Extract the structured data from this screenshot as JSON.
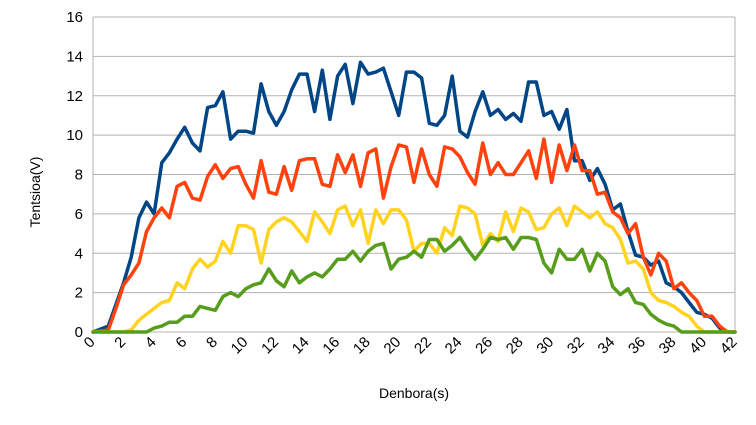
{
  "chart_data": {
    "type": "line",
    "xlabel": "Denbora(s)",
    "ylabel": "Tentsioa(V)",
    "xlim": [
      0,
      42
    ],
    "ylim": [
      0,
      16
    ],
    "xticks": [
      0,
      2,
      4,
      6,
      8,
      10,
      12,
      14,
      16,
      18,
      20,
      22,
      24,
      26,
      28,
      30,
      32,
      34,
      36,
      38,
      40,
      42
    ],
    "yticks": [
      0,
      2,
      4,
      6,
      8,
      10,
      12,
      14,
      16
    ],
    "grid": true,
    "legend": "none",
    "series": [
      {
        "color": "#004586",
        "points": [
          [
            0,
            0
          ],
          [
            1,
            0.3
          ],
          [
            2,
            2.5
          ],
          [
            2.5,
            3.8
          ],
          [
            3,
            5.8
          ],
          [
            3.5,
            6.6
          ],
          [
            4,
            6.0
          ],
          [
            4.5,
            8.6
          ],
          [
            5,
            9.1
          ],
          [
            5.5,
            9.8
          ],
          [
            6,
            10.4
          ],
          [
            6.5,
            9.6
          ],
          [
            7,
            9.2
          ],
          [
            7.5,
            11.4
          ],
          [
            8,
            11.5
          ],
          [
            8.5,
            12.2
          ],
          [
            9,
            9.8
          ],
          [
            9.5,
            10.2
          ],
          [
            10,
            10.2
          ],
          [
            10.5,
            10.1
          ],
          [
            11,
            12.6
          ],
          [
            11.5,
            11.2
          ],
          [
            12,
            10.5
          ],
          [
            12.5,
            11.2
          ],
          [
            13,
            12.3
          ],
          [
            13.5,
            13.1
          ],
          [
            14,
            13.1
          ],
          [
            14.5,
            11.2
          ],
          [
            15,
            13.3
          ],
          [
            15.5,
            10.8
          ],
          [
            16,
            13.0
          ],
          [
            16.5,
            13.6
          ],
          [
            17,
            11.6
          ],
          [
            17.5,
            13.7
          ],
          [
            18,
            13.1
          ],
          [
            18.5,
            13.2
          ],
          [
            19,
            13.4
          ],
          [
            19.5,
            12.2
          ],
          [
            20,
            11.0
          ],
          [
            20.5,
            13.2
          ],
          [
            21,
            13.2
          ],
          [
            21.5,
            12.9
          ],
          [
            22,
            10.6
          ],
          [
            22.5,
            10.5
          ],
          [
            23,
            11.0
          ],
          [
            23.5,
            13.0
          ],
          [
            24,
            10.2
          ],
          [
            24.5,
            9.9
          ],
          [
            25,
            11.2
          ],
          [
            25.5,
            12.2
          ],
          [
            26,
            11.0
          ],
          [
            26.5,
            11.3
          ],
          [
            27,
            10.8
          ],
          [
            27.5,
            11.1
          ],
          [
            28,
            10.7
          ],
          [
            28.5,
            12.7
          ],
          [
            29,
            12.7
          ],
          [
            29.5,
            11.0
          ],
          [
            30,
            11.2
          ],
          [
            30.5,
            10.3
          ],
          [
            31,
            11.3
          ],
          [
            31.5,
            8.7
          ],
          [
            32,
            8.7
          ],
          [
            32.5,
            7.7
          ],
          [
            33,
            8.3
          ],
          [
            33.5,
            7.5
          ],
          [
            34,
            6.2
          ],
          [
            34.5,
            6.5
          ],
          [
            35,
            5.1
          ],
          [
            35.5,
            3.9
          ],
          [
            36,
            3.8
          ],
          [
            36.5,
            3.4
          ],
          [
            37,
            3.6
          ],
          [
            37.5,
            2.5
          ],
          [
            38,
            2.3
          ],
          [
            38.5,
            2.0
          ],
          [
            39,
            1.5
          ],
          [
            39.5,
            1.0
          ],
          [
            40,
            0.9
          ],
          [
            40.5,
            0.7
          ],
          [
            41,
            0.2
          ],
          [
            41.5,
            0
          ],
          [
            42,
            0
          ]
        ]
      },
      {
        "color": "#ff420e",
        "points": [
          [
            0,
            0
          ],
          [
            1,
            0.1
          ],
          [
            1.5,
            1.2
          ],
          [
            2,
            2.4
          ],
          [
            2.5,
            2.9
          ],
          [
            3,
            3.5
          ],
          [
            3.5,
            5.1
          ],
          [
            4,
            5.8
          ],
          [
            4.5,
            6.3
          ],
          [
            5,
            5.8
          ],
          [
            5.5,
            7.4
          ],
          [
            6,
            7.6
          ],
          [
            6.5,
            6.8
          ],
          [
            7,
            6.7
          ],
          [
            7.5,
            7.9
          ],
          [
            8,
            8.5
          ],
          [
            8.5,
            7.8
          ],
          [
            9,
            8.3
          ],
          [
            9.5,
            8.4
          ],
          [
            10,
            7.5
          ],
          [
            10.5,
            6.8
          ],
          [
            11,
            8.7
          ],
          [
            11.5,
            7.1
          ],
          [
            12,
            7.0
          ],
          [
            12.5,
            8.4
          ],
          [
            13,
            7.2
          ],
          [
            13.5,
            8.7
          ],
          [
            14,
            8.8
          ],
          [
            14.5,
            8.8
          ],
          [
            15,
            7.5
          ],
          [
            15.5,
            7.4
          ],
          [
            16,
            9.0
          ],
          [
            16.5,
            8.1
          ],
          [
            17,
            9.0
          ],
          [
            17.5,
            7.4
          ],
          [
            18,
            9.1
          ],
          [
            18.5,
            9.3
          ],
          [
            19,
            6.8
          ],
          [
            19.5,
            8.4
          ],
          [
            20,
            9.5
          ],
          [
            20.5,
            9.4
          ],
          [
            21,
            7.6
          ],
          [
            21.5,
            9.3
          ],
          [
            22,
            8.0
          ],
          [
            22.5,
            7.4
          ],
          [
            23,
            9.4
          ],
          [
            23.5,
            9.3
          ],
          [
            24,
            8.9
          ],
          [
            24.5,
            8.1
          ],
          [
            25,
            7.5
          ],
          [
            25.5,
            9.6
          ],
          [
            26,
            8.0
          ],
          [
            26.5,
            8.6
          ],
          [
            27,
            8.0
          ],
          [
            27.5,
            8.0
          ],
          [
            28,
            8.6
          ],
          [
            28.5,
            9.2
          ],
          [
            29,
            7.8
          ],
          [
            29.5,
            9.8
          ],
          [
            30,
            7.6
          ],
          [
            30.5,
            9.5
          ],
          [
            31,
            8.2
          ],
          [
            31.5,
            9.5
          ],
          [
            32,
            8.2
          ],
          [
            32.5,
            8.2
          ],
          [
            33,
            7.0
          ],
          [
            33.5,
            7.1
          ],
          [
            34,
            6.1
          ],
          [
            34.5,
            5.8
          ],
          [
            35,
            5.0
          ],
          [
            35.5,
            5.5
          ],
          [
            36,
            3.8
          ],
          [
            36.5,
            2.9
          ],
          [
            37,
            4.0
          ],
          [
            37.5,
            3.6
          ],
          [
            38,
            2.2
          ],
          [
            38.5,
            2.5
          ],
          [
            39,
            2.0
          ],
          [
            39.5,
            1.6
          ],
          [
            40,
            0.8
          ],
          [
            40.5,
            0.8
          ],
          [
            41,
            0.3
          ],
          [
            41.5,
            0
          ],
          [
            42,
            0
          ]
        ]
      },
      {
        "color": "#ffd320",
        "points": [
          [
            0,
            0
          ],
          [
            1,
            0
          ],
          [
            2,
            0
          ],
          [
            2.5,
            0.1
          ],
          [
            3,
            0.6
          ],
          [
            3.5,
            0.9
          ],
          [
            4,
            1.2
          ],
          [
            4.5,
            1.5
          ],
          [
            5,
            1.6
          ],
          [
            5.5,
            2.5
          ],
          [
            6,
            2.2
          ],
          [
            6.5,
            3.2
          ],
          [
            7,
            3.7
          ],
          [
            7.5,
            3.3
          ],
          [
            8,
            3.6
          ],
          [
            8.5,
            4.6
          ],
          [
            9,
            4.0
          ],
          [
            9.5,
            5.4
          ],
          [
            10,
            5.4
          ],
          [
            10.5,
            5.2
          ],
          [
            11,
            3.5
          ],
          [
            11.5,
            5.2
          ],
          [
            12,
            5.6
          ],
          [
            12.5,
            5.8
          ],
          [
            13,
            5.6
          ],
          [
            13.5,
            5.1
          ],
          [
            14,
            4.6
          ],
          [
            14.5,
            6.1
          ],
          [
            15,
            5.6
          ],
          [
            15.5,
            5.0
          ],
          [
            16,
            6.2
          ],
          [
            16.5,
            6.4
          ],
          [
            17,
            5.4
          ],
          [
            17.5,
            6.2
          ],
          [
            18,
            4.5
          ],
          [
            18.5,
            6.2
          ],
          [
            19,
            5.5
          ],
          [
            19.5,
            6.2
          ],
          [
            20,
            6.2
          ],
          [
            20.5,
            5.7
          ],
          [
            21,
            4.1
          ],
          [
            21.5,
            4.5
          ],
          [
            22,
            4.5
          ],
          [
            22.5,
            4.0
          ],
          [
            23,
            5.3
          ],
          [
            23.5,
            4.9
          ],
          [
            24,
            6.4
          ],
          [
            24.5,
            6.3
          ],
          [
            25,
            6.0
          ],
          [
            25.5,
            4.4
          ],
          [
            26,
            5.0
          ],
          [
            26.5,
            4.6
          ],
          [
            27,
            6.1
          ],
          [
            27.5,
            5.1
          ],
          [
            28,
            6.3
          ],
          [
            28.5,
            6.1
          ],
          [
            29,
            5.2
          ],
          [
            29.5,
            5.3
          ],
          [
            30,
            6.0
          ],
          [
            30.5,
            6.3
          ],
          [
            31,
            5.4
          ],
          [
            31.5,
            6.4
          ],
          [
            32,
            6.1
          ],
          [
            32.5,
            5.8
          ],
          [
            33,
            6.1
          ],
          [
            33.5,
            5.5
          ],
          [
            34,
            5.3
          ],
          [
            34.5,
            4.7
          ],
          [
            35,
            3.5
          ],
          [
            35.5,
            3.6
          ],
          [
            36,
            3.2
          ],
          [
            36.5,
            2.0
          ],
          [
            37,
            1.6
          ],
          [
            37.5,
            1.5
          ],
          [
            38,
            1.3
          ],
          [
            38.5,
            1.0
          ],
          [
            39,
            0.8
          ],
          [
            39.5,
            0.3
          ],
          [
            40,
            0
          ],
          [
            41,
            0
          ],
          [
            42,
            0
          ]
        ]
      },
      {
        "color": "#579d1c",
        "points": [
          [
            0,
            0
          ],
          [
            1,
            0
          ],
          [
            2,
            0
          ],
          [
            3,
            0
          ],
          [
            3.5,
            0
          ],
          [
            4,
            0.2
          ],
          [
            4.5,
            0.3
          ],
          [
            5,
            0.5
          ],
          [
            5.5,
            0.5
          ],
          [
            6,
            0.8
          ],
          [
            6.5,
            0.8
          ],
          [
            7,
            1.3
          ],
          [
            7.5,
            1.2
          ],
          [
            8,
            1.1
          ],
          [
            8.5,
            1.8
          ],
          [
            9,
            2.0
          ],
          [
            9.5,
            1.8
          ],
          [
            10,
            2.2
          ],
          [
            10.5,
            2.4
          ],
          [
            11,
            2.5
          ],
          [
            11.5,
            3.2
          ],
          [
            12,
            2.6
          ],
          [
            12.5,
            2.3
          ],
          [
            13,
            3.1
          ],
          [
            13.5,
            2.5
          ],
          [
            14,
            2.8
          ],
          [
            14.5,
            3.0
          ],
          [
            15,
            2.8
          ],
          [
            15.5,
            3.2
          ],
          [
            16,
            3.7
          ],
          [
            16.5,
            3.7
          ],
          [
            17,
            4.1
          ],
          [
            17.5,
            3.6
          ],
          [
            18,
            4.1
          ],
          [
            18.5,
            4.4
          ],
          [
            19,
            4.5
          ],
          [
            19.5,
            3.2
          ],
          [
            20,
            3.7
          ],
          [
            20.5,
            3.8
          ],
          [
            21,
            4.1
          ],
          [
            21.5,
            3.8
          ],
          [
            22,
            4.7
          ],
          [
            22.5,
            4.7
          ],
          [
            23,
            4.1
          ],
          [
            23.5,
            4.4
          ],
          [
            24,
            4.8
          ],
          [
            24.5,
            4.2
          ],
          [
            25,
            3.7
          ],
          [
            25.5,
            4.2
          ],
          [
            26,
            4.8
          ],
          [
            26.5,
            4.7
          ],
          [
            27,
            4.8
          ],
          [
            27.5,
            4.2
          ],
          [
            28,
            4.8
          ],
          [
            28.5,
            4.8
          ],
          [
            29,
            4.7
          ],
          [
            29.5,
            3.5
          ],
          [
            30,
            3.0
          ],
          [
            30.5,
            4.2
          ],
          [
            31,
            3.7
          ],
          [
            31.5,
            3.7
          ],
          [
            32,
            4.2
          ],
          [
            32.5,
            3.1
          ],
          [
            33,
            4.0
          ],
          [
            33.5,
            3.6
          ],
          [
            34,
            2.3
          ],
          [
            34.5,
            1.9
          ],
          [
            35,
            2.2
          ],
          [
            35.5,
            1.5
          ],
          [
            36,
            1.4
          ],
          [
            36.5,
            0.9
          ],
          [
            37,
            0.6
          ],
          [
            37.5,
            0.4
          ],
          [
            38,
            0.3
          ],
          [
            38.5,
            0
          ],
          [
            39,
            0
          ],
          [
            40,
            0
          ],
          [
            41,
            0
          ],
          [
            42,
            0
          ]
        ]
      }
    ]
  }
}
